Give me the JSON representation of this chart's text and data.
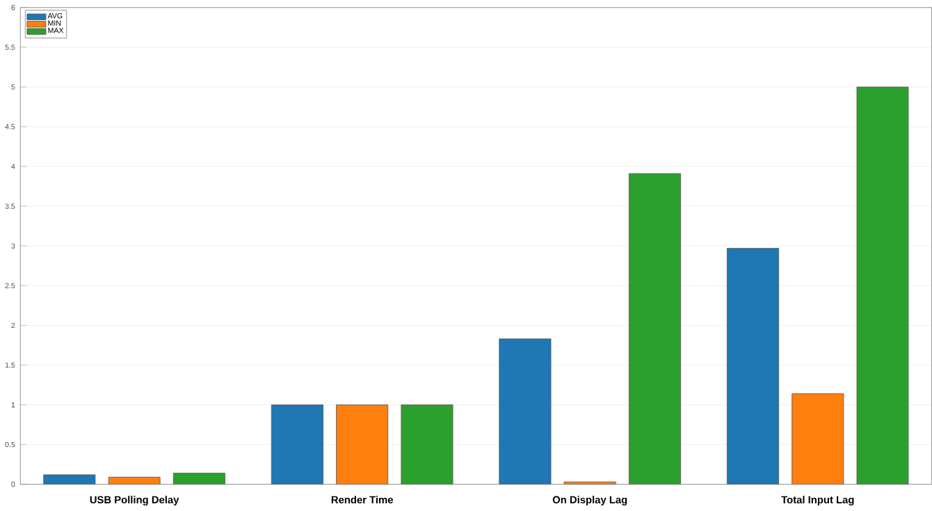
{
  "chart_data": {
    "type": "bar",
    "categories": [
      "USB Polling Delay",
      "Render Time",
      "On Display Lag",
      "Total Input Lag"
    ],
    "series": [
      {
        "name": "AVG",
        "color": "#1f77b4",
        "values": [
          0.12,
          1.0,
          1.83,
          2.97
        ]
      },
      {
        "name": "MIN",
        "color": "#ff7f0e",
        "values": [
          0.09,
          1.0,
          0.03,
          1.14
        ]
      },
      {
        "name": "MAX",
        "color": "#2ca02c",
        "values": [
          0.14,
          1.0,
          3.91,
          5.0
        ]
      }
    ],
    "ylim": [
      0,
      6
    ],
    "yticks": [
      0,
      0.5,
      1,
      1.5,
      2,
      2.5,
      3,
      3.5,
      4,
      4.5,
      5,
      5.5,
      6
    ],
    "grid": "y",
    "legend": "top left"
  }
}
